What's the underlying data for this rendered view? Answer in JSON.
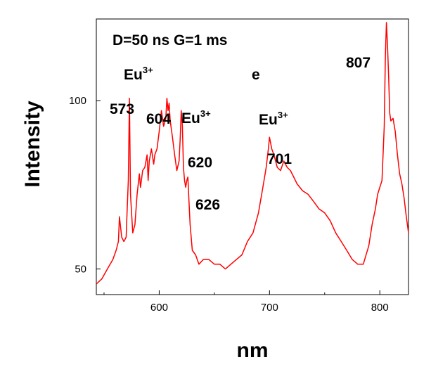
{
  "chart_data": {
    "type": "line",
    "title": "",
    "xlabel": "nm",
    "ylabel": "Intensity",
    "xlim": [
      543,
      826
    ],
    "ylim": [
      45,
      140
    ],
    "y_scale": "log",
    "x_ticks": [
      600,
      700,
      800
    ],
    "x_tick_labels": [
      "600",
      "700",
      "800"
    ],
    "y_ticks": [
      50,
      100
    ],
    "y_tick_labels": [
      "50",
      "100"
    ],
    "grid": false,
    "legend": "none",
    "line_color": "#ff0000",
    "series": [
      {
        "x": [
          543,
          548,
          553,
          558,
          561,
          563,
          564,
          566,
          568,
          570,
          571,
          572,
          573,
          574,
          576,
          578,
          580,
          582,
          583,
          585,
          587,
          589,
          590,
          591,
          593,
          595,
          596,
          598,
          600,
          602,
          604,
          606,
          607,
          608,
          609,
          610,
          612,
          614,
          616,
          618,
          619,
          620,
          621,
          622,
          623,
          624,
          625,
          626,
          627,
          628,
          630,
          633,
          636,
          640,
          645,
          650,
          655,
          660,
          665,
          670,
          675,
          680,
          685,
          690,
          694,
          697,
          699,
          700,
          701,
          702,
          704,
          707,
          710,
          713,
          716,
          719,
          722,
          725,
          730,
          735,
          740,
          745,
          750,
          755,
          760,
          765,
          770,
          775,
          780,
          785,
          790,
          793,
          796,
          798,
          800,
          802,
          804,
          805,
          806,
          807,
          808,
          809,
          810,
          812,
          814,
          816,
          818,
          820,
          822,
          824,
          826
        ],
        "y": [
          47,
          48,
          50,
          52,
          54,
          56,
          62,
          57,
          56,
          57,
          64,
          72,
          101,
          68,
          58,
          60,
          68,
          74,
          70,
          75,
          76,
          80,
          72,
          78,
          82,
          77,
          80,
          82,
          88,
          96,
          90,
          93,
          101,
          96,
          99,
          92,
          86,
          80,
          75,
          78,
          85,
          96,
          90,
          76,
          72,
          70,
          72,
          73,
          66,
          60,
          54,
          53,
          51,
          52,
          52,
          51,
          51,
          50,
          51,
          52,
          53,
          56,
          58,
          63,
          70,
          76,
          82,
          86,
          84,
          82,
          80,
          76,
          75,
          78,
          76,
          75,
          73,
          71,
          69,
          68,
          66,
          64,
          63,
          61,
          58,
          56,
          54,
          52,
          51,
          51,
          55,
          60,
          64,
          68,
          70,
          72,
          90,
          120,
          138,
          125,
          110,
          95,
          92,
          93,
          88,
          80,
          74,
          71,
          67,
          62,
          58
        ]
      }
    ],
    "annotations": [
      {
        "text": "D=50 ns G=1 ms"
      },
      {
        "text": "Eu",
        "sup": "3+"
      },
      {
        "text": "e"
      },
      {
        "text": "807"
      },
      {
        "text": "573"
      },
      {
        "text": "604"
      },
      {
        "text": "Eu",
        "sup": "3+"
      },
      {
        "text": "Eu",
        "sup": "3+"
      },
      {
        "text": "620"
      },
      {
        "text": "701"
      },
      {
        "text": "626"
      }
    ]
  }
}
